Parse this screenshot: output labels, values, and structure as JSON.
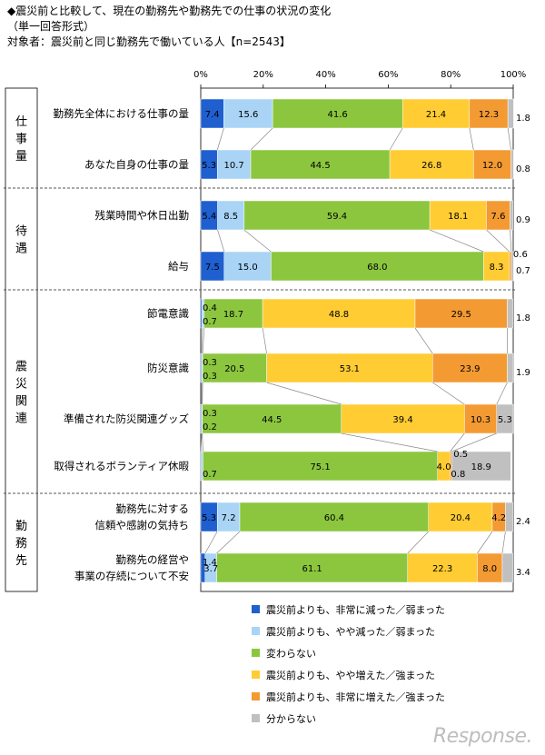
{
  "header": {
    "title": "◆震災前と比較して、現在の勤務先や勤務先での仕事の状況の変化",
    "format_note": "（単一回答形式）",
    "target": "対象者：震災前と同じ勤務先で働いている人【n=2543】"
  },
  "watermark": "Response.",
  "chart_data": {
    "type": "bar",
    "orientation": "horizontal-stacked-100",
    "x_ticks": [
      "0%",
      "20%",
      "40%",
      "60%",
      "80%",
      "100%"
    ],
    "xlim": [
      0,
      100
    ],
    "groups": [
      {
        "label": "仕事量",
        "rows": [
          0,
          1
        ]
      },
      {
        "label": "待遇",
        "rows": [
          2,
          3
        ]
      },
      {
        "label": "震災関連",
        "rows": [
          4,
          5,
          6,
          7
        ]
      },
      {
        "label": "勤務先",
        "rows": [
          8,
          9
        ]
      }
    ],
    "categories": [
      "勤務先全体における仕事の量",
      "あなた自身の仕事の量",
      "残業時間や休日出勤",
      "給与",
      "節電意識",
      "防災意識",
      "準備された防災関連グッズ",
      "取得されるボランティア休暇",
      "勤務先に対する\n信頼や感謝の気持ち",
      "勤務先の経営や\n事業の存続について不安"
    ],
    "series": [
      {
        "name": "震災前よりも、非常に減った／弱まった",
        "color": "#1f5fcf",
        "values": [
          7.4,
          5.3,
          5.4,
          7.5,
          0.4,
          0.3,
          0.3,
          0.0,
          5.3,
          1.4
        ]
      },
      {
        "name": "震災前よりも、やや減った／弱まった",
        "color": "#a9d4f5",
        "values": [
          15.6,
          10.7,
          8.5,
          15.0,
          0.7,
          0.3,
          0.2,
          0.7,
          7.2,
          3.7
        ]
      },
      {
        "name": "変わらない",
        "color": "#8cc63f",
        "values": [
          41.6,
          44.5,
          59.4,
          68.0,
          18.7,
          20.5,
          44.5,
          75.1,
          60.4,
          61.1
        ]
      },
      {
        "name": "震災前よりも、やや増えた／強まった",
        "color": "#ffcc33",
        "values": [
          21.4,
          26.8,
          18.1,
          8.3,
          48.8,
          53.1,
          39.4,
          4.0,
          20.4,
          22.3
        ]
      },
      {
        "name": "震災前よりも、非常に増えた／強まった",
        "color": "#f39a33",
        "values": [
          12.3,
          12.0,
          7.6,
          0.6,
          29.5,
          23.9,
          10.3,
          0.5,
          4.2,
          8.0
        ]
      },
      {
        "name": "分からない",
        "color": "#c0c0c0",
        "values": [
          1.8,
          0.8,
          0.9,
          0.7,
          1.8,
          1.9,
          5.3,
          18.9,
          2.4,
          3.4
        ]
      }
    ],
    "data_labels": [
      [
        "7.4",
        "15.6",
        "41.6",
        "21.4",
        "12.3",
        "1.8"
      ],
      [
        "5.3",
        "10.7",
        "44.5",
        "26.8",
        "12.0",
        "0.8"
      ],
      [
        "5.4",
        "8.5",
        "59.4",
        "18.1",
        "7.6",
        "0.9"
      ],
      [
        "7.5",
        "15.0",
        "68.0",
        "8.3",
        "0.6",
        "0.7"
      ],
      [
        "0.4",
        "0.7",
        "18.7",
        "48.8",
        "29.5",
        "1.8"
      ],
      [
        "0.3",
        "0.3",
        "20.5",
        "53.1",
        "23.9",
        "1.9"
      ],
      [
        "0.3",
        "0.2",
        "44.5",
        "39.4",
        "10.3",
        "5.3"
      ],
      [
        "",
        "0.7",
        "75.1",
        "4.0",
        "0.5",
        "18.9"
      ],
      [
        "5.3",
        "7.2",
        "60.4",
        "20.4",
        "4.2",
        "2.4"
      ],
      [
        "1.4",
        "3.7",
        "61.1",
        "22.3",
        "8.0",
        "3.4"
      ]
    ],
    "extra_labels": [
      {
        "row": 7,
        "text": "0.8"
      }
    ],
    "legend_position": "bottom"
  }
}
